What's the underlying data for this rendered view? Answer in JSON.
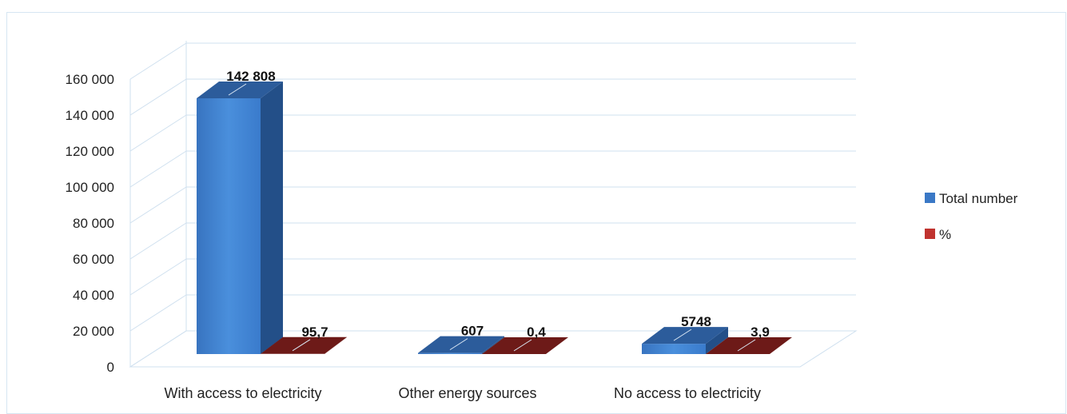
{
  "chart_data": {
    "type": "bar",
    "title": "",
    "xlabel": "",
    "ylabel": "",
    "ylim": [
      0,
      160000
    ],
    "yticks": [
      0,
      20000,
      40000,
      60000,
      80000,
      100000,
      120000,
      140000,
      160000
    ],
    "ytick_labels": [
      "0",
      "20 000",
      "40 000",
      "60 000",
      "80 000",
      "100 000",
      "120 000",
      "140 000",
      "160 000"
    ],
    "categories": [
      "With access to electricity",
      "Other energy sources",
      "No access to electricity"
    ],
    "series": [
      {
        "name": "Total number",
        "values": [
          142808,
          607,
          5748
        ],
        "labels": [
          "142 808",
          "607",
          "5748"
        ],
        "color": "#3a78c6"
      },
      {
        "name": "%",
        "values": [
          95.7,
          0.4,
          3.9
        ],
        "labels": [
          "95,7",
          "0,4",
          "3,9"
        ],
        "color": "#c0332f"
      }
    ],
    "legend": "right",
    "grid": true,
    "style": "3d-column"
  }
}
